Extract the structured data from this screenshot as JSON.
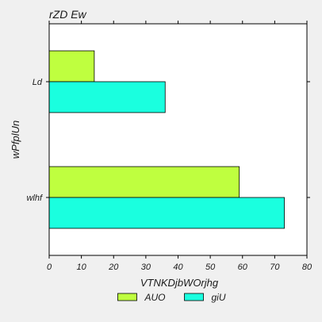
{
  "chart_data": {
    "type": "bar",
    "orientation": "horizontal",
    "title": "rZD Ew",
    "xlabel": "VTNKDjbWOrjhg",
    "ylabel": "wPfplUn",
    "categories": [
      "wlhf",
      "Ld"
    ],
    "series": [
      {
        "name": "AUO",
        "values": [
          59,
          14
        ],
        "color": "#bfff3f"
      },
      {
        "name": "giU",
        "values": [
          73,
          36
        ],
        "color": "#1affdf"
      }
    ],
    "xlim": [
      0,
      80
    ],
    "xticks": [
      0,
      10,
      20,
      30,
      40,
      50,
      60,
      70,
      80
    ],
    "grid": false,
    "legend_position": "bottom-center"
  }
}
